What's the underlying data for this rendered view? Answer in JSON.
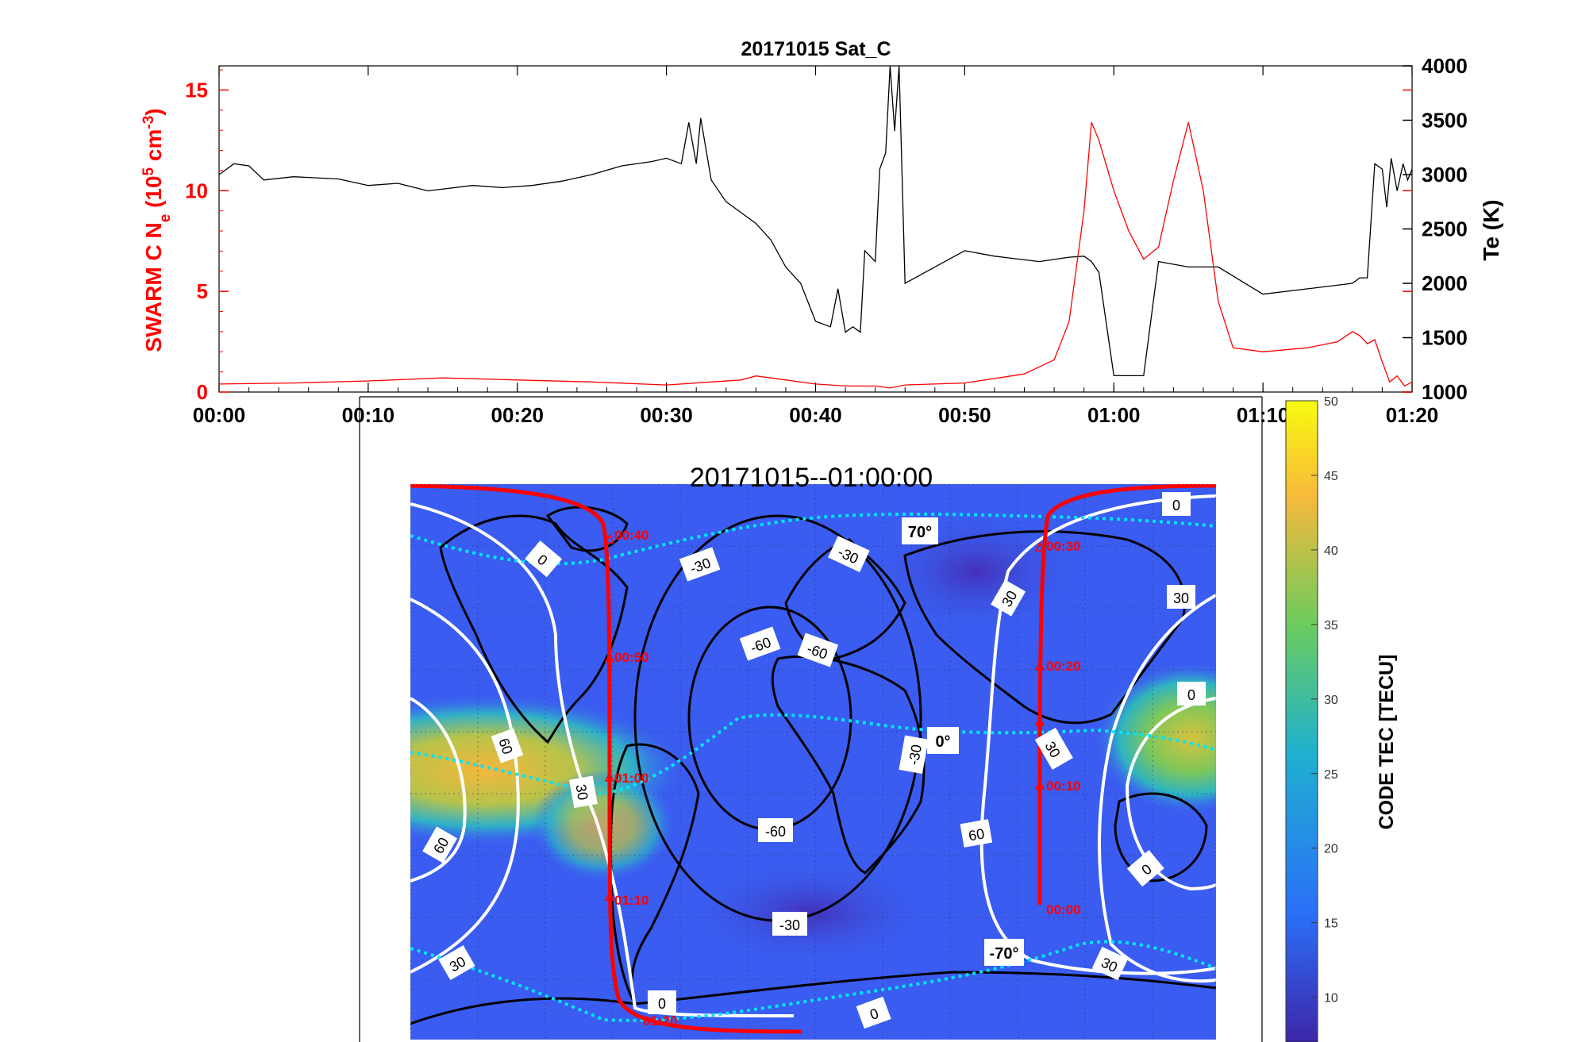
{
  "chart_data": [
    {
      "type": "line",
      "title": "20171015  Sat_C",
      "xlabel": "",
      "ylabel_left_parts": {
        "pre": "SWARM C  N",
        "sub": "e",
        "mid": " (10",
        "sup1": "5",
        "mid2": " cm",
        "sup2": "-3",
        "post": ")"
      },
      "ylabel_right": "Te (K)",
      "x_ticks": [
        "00:00",
        "00:10",
        "00:20",
        "00:30",
        "00:40",
        "00:50",
        "01:00",
        "01:10",
        "01:20"
      ],
      "x_range_minutes": [
        0,
        80
      ],
      "y_left_ticks": [
        "0",
        "5",
        "10",
        "15"
      ],
      "y_left_range": [
        0,
        16.2
      ],
      "y_right_ticks": [
        "1000",
        "1500",
        "2000",
        "2500",
        "3000",
        "3500",
        "4000"
      ],
      "y_right_range": [
        1000,
        4000
      ],
      "colors": {
        "ne": "#ff0000",
        "te": "#000000",
        "left_axis": "#ff0000",
        "right_axis": "#000000"
      },
      "series": [
        {
          "axis": "left",
          "x_minutes": [
            0,
            5,
            10,
            15,
            20,
            25,
            30,
            33,
            35,
            36,
            38,
            40,
            42,
            44,
            45,
            46,
            50,
            54,
            56,
            57,
            58,
            58.5,
            59,
            60,
            61,
            62,
            63,
            64,
            65,
            66,
            67,
            68,
            70,
            73,
            75,
            76,
            76.5,
            77,
            77.5,
            78,
            78.5,
            79,
            79.5,
            80
          ],
          "values": [
            0.4,
            0.45,
            0.55,
            0.7,
            0.6,
            0.5,
            0.35,
            0.5,
            0.6,
            0.8,
            0.6,
            0.4,
            0.3,
            0.3,
            0.2,
            0.35,
            0.45,
            0.9,
            1.6,
            3.5,
            9.0,
            13.4,
            12.5,
            10.0,
            8.0,
            6.6,
            7.2,
            10.5,
            13.4,
            10.0,
            4.5,
            2.2,
            2.0,
            2.2,
            2.5,
            3.0,
            2.8,
            2.4,
            2.6,
            1.5,
            0.5,
            0.8,
            0.3,
            0.5
          ]
        },
        {
          "axis": "right",
          "x_minutes": [
            0,
            1,
            2,
            3,
            5,
            8,
            10,
            12,
            14,
            17,
            19,
            21,
            23,
            25,
            27,
            29,
            30,
            31,
            31.5,
            32,
            32.3,
            33,
            34,
            35,
            36,
            37,
            38,
            39,
            40,
            41,
            41.5,
            42,
            42.5,
            43,
            43.3,
            44,
            44.3,
            44.7,
            45,
            45.3,
            45.6,
            46,
            48,
            50,
            52,
            55,
            57,
            58,
            58.5,
            59,
            60,
            61,
            62,
            63,
            65,
            67,
            70,
            73,
            76,
            76.5,
            77,
            77.5,
            78,
            78.3,
            78.6,
            79,
            79.4,
            79.7,
            80
          ],
          "values": [
            3000,
            3100,
            3080,
            2950,
            2980,
            2960,
            2900,
            2920,
            2850,
            2900,
            2880,
            2900,
            2940,
            3000,
            3080,
            3120,
            3150,
            3100,
            3480,
            3100,
            3520,
            2950,
            2750,
            2650,
            2550,
            2400,
            2150,
            2000,
            1650,
            1600,
            1950,
            1550,
            1600,
            1550,
            2300,
            2200,
            3050,
            3200,
            4000,
            3400,
            4000,
            2000,
            2150,
            2300,
            2250,
            2200,
            2240,
            2250,
            2200,
            2100,
            1150,
            1150,
            1150,
            2200,
            2150,
            2150,
            1900,
            1950,
            2000,
            2050,
            2050,
            3100,
            3050,
            2700,
            3150,
            2850,
            3100,
            2950,
            3050
          ]
        }
      ]
    },
    {
      "type": "heatmap",
      "title": "20171015--01:00:00",
      "colorbar_label": "CODE TEC [TECU]",
      "colorbar_ticks": [
        "10",
        "15",
        "20",
        "25",
        "30",
        "35",
        "40",
        "45",
        "50"
      ],
      "colorbar_range": [
        7,
        50
      ],
      "colors": {
        "low": "#3d26a8",
        "mid": "#1fb0cf",
        "high": "#f9fb0e",
        "track": "#ff0000",
        "dip_lines": "#00e5ff"
      },
      "dip_labels": [
        "70°",
        "0°",
        "-70°"
      ],
      "track_time_labels": [
        "00:40",
        "00:50",
        "01:00",
        "01:10",
        "01:20",
        "00:30",
        "00:20",
        "00:10",
        "00:00"
      ],
      "white_contour_labels": [
        "0",
        "30",
        "0",
        "30",
        "60",
        "0",
        "0",
        "30",
        "60",
        "30",
        "60",
        "30",
        "0",
        "0"
      ],
      "black_contour_labels": [
        "-30",
        "-30",
        "-60",
        "-60",
        "-30",
        "-60",
        "-30",
        "30"
      ]
    }
  ]
}
